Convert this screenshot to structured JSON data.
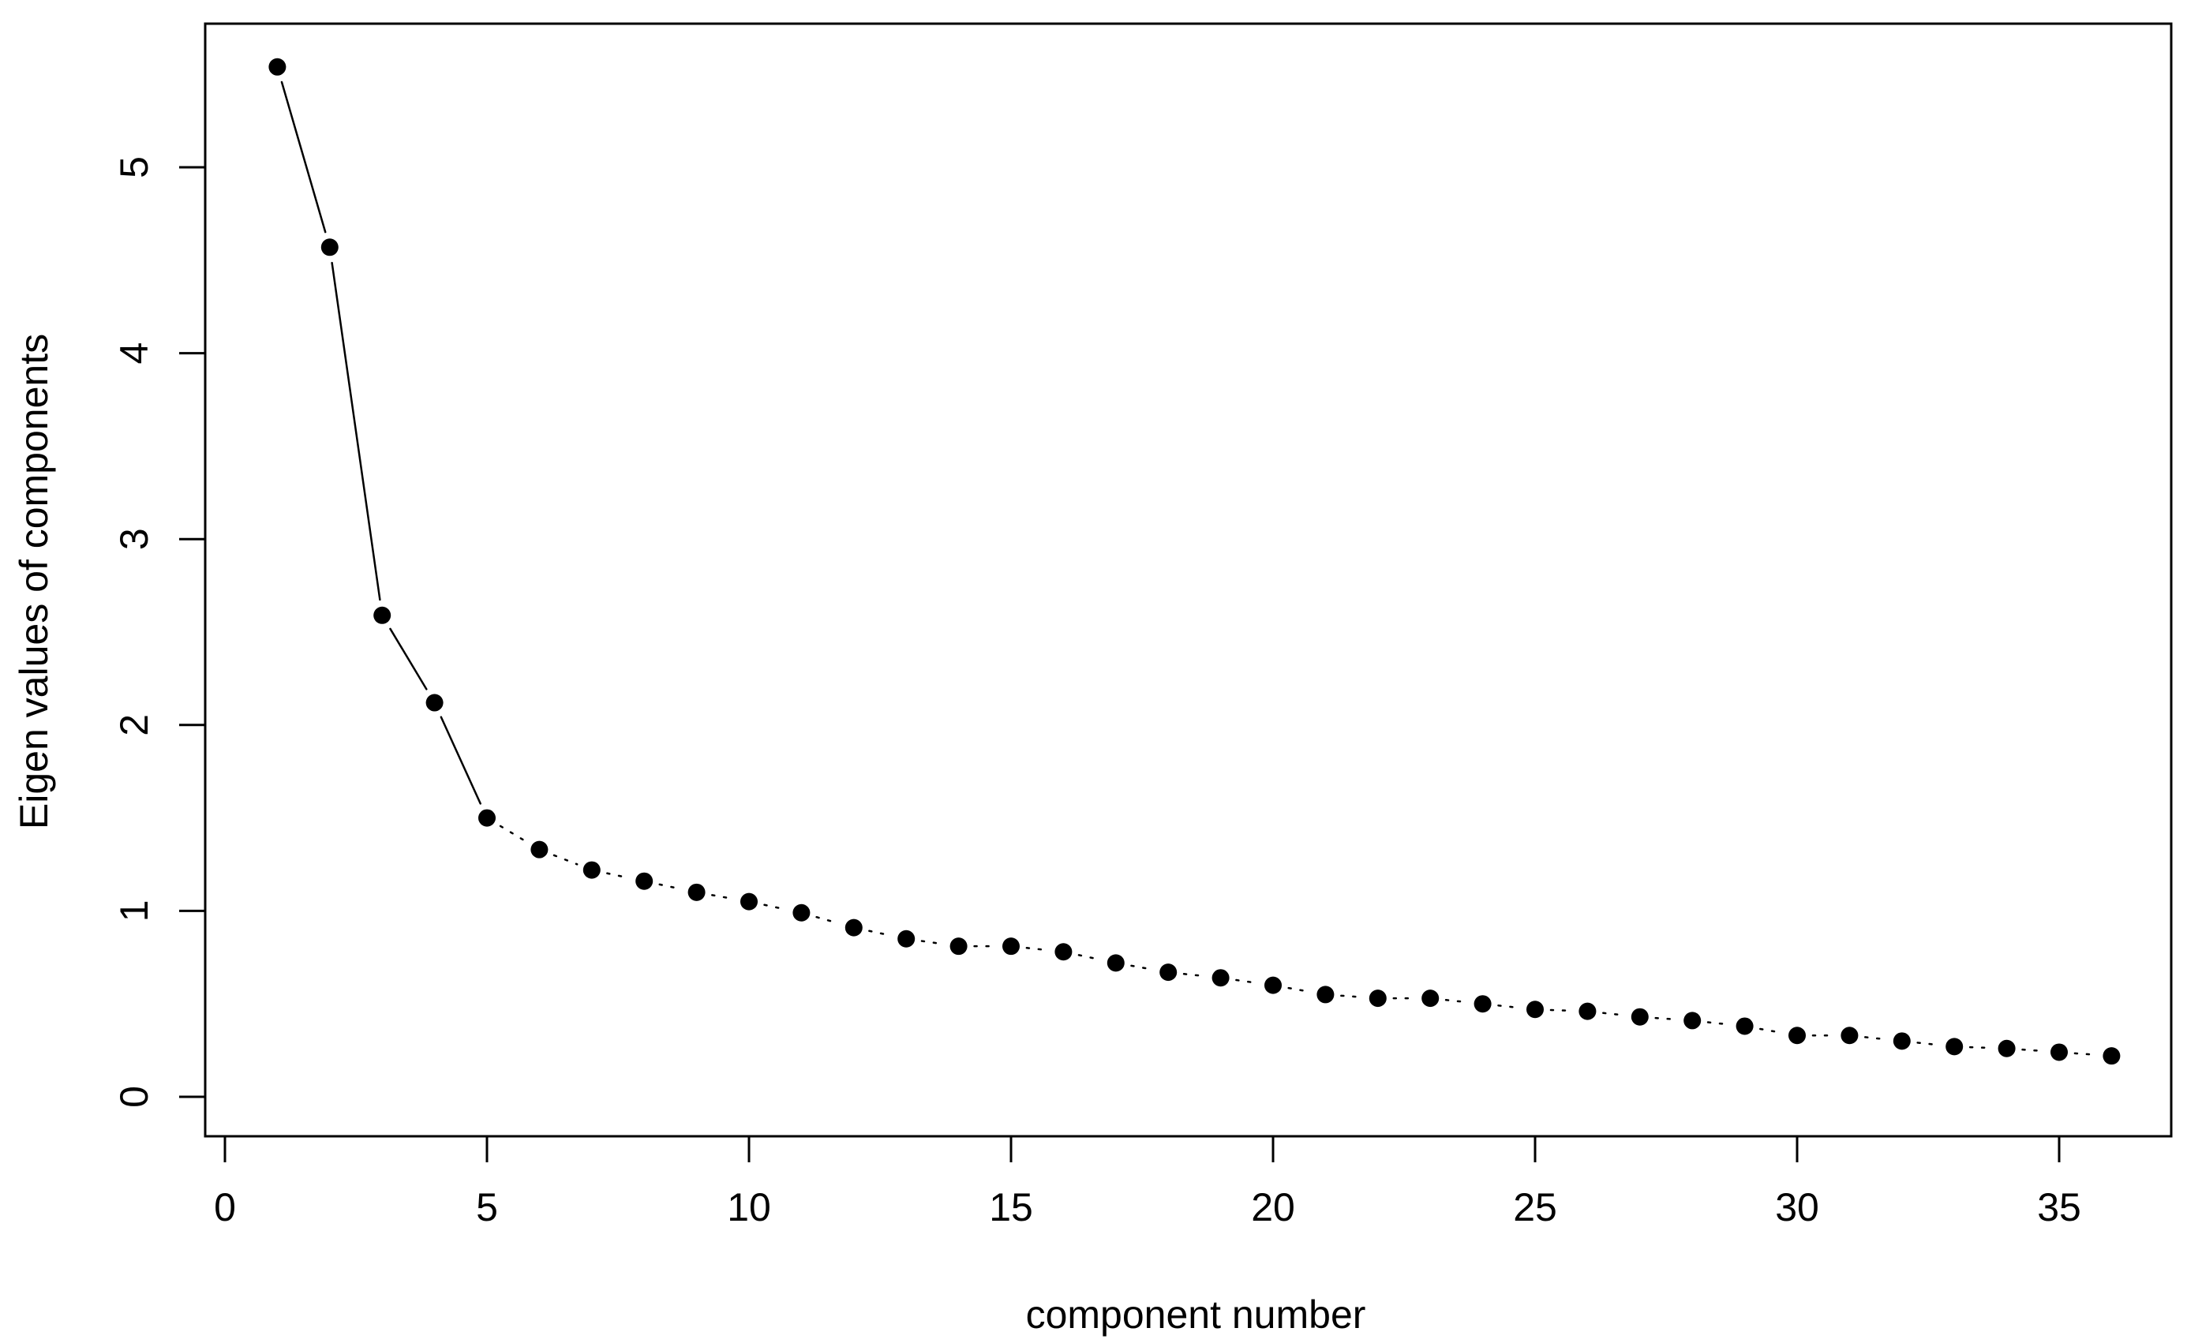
{
  "chart_data": {
    "type": "scatter",
    "title": "",
    "xlabel": "component number",
    "ylabel": "Eigen values of components",
    "xlim": [
      0,
      36
    ],
    "ylim": [
      0,
      5.5
    ],
    "x_ticks": [
      "0",
      "5",
      "10",
      "15",
      "20",
      "25",
      "30",
      "35"
    ],
    "y_ticks": [
      "0",
      "1",
      "2",
      "3",
      "4",
      "5"
    ],
    "grid": false,
    "legend": "none",
    "marker_color": "#000000",
    "x": [
      1,
      2,
      3,
      4,
      5,
      6,
      7,
      8,
      9,
      10,
      11,
      12,
      13,
      14,
      15,
      16,
      17,
      18,
      19,
      20,
      21,
      22,
      23,
      24,
      25,
      26,
      27,
      28,
      29,
      30,
      31,
      32,
      33,
      34,
      35,
      36
    ],
    "y": [
      5.54,
      4.57,
      2.59,
      2.12,
      1.5,
      1.33,
      1.22,
      1.16,
      1.1,
      1.05,
      0.99,
      0.91,
      0.85,
      0.81,
      0.81,
      0.78,
      0.72,
      0.67,
      0.64,
      0.6,
      0.55,
      0.53,
      0.53,
      0.5,
      0.47,
      0.46,
      0.43,
      0.41,
      0.38,
      0.33,
      0.33,
      0.3,
      0.27,
      0.26,
      0.24,
      0.22
    ],
    "segments": [
      {
        "style": "solid",
        "from_index": 0,
        "to_index": 4
      },
      {
        "style": "dotted",
        "from_index": 4,
        "to_index": 35
      }
    ]
  }
}
